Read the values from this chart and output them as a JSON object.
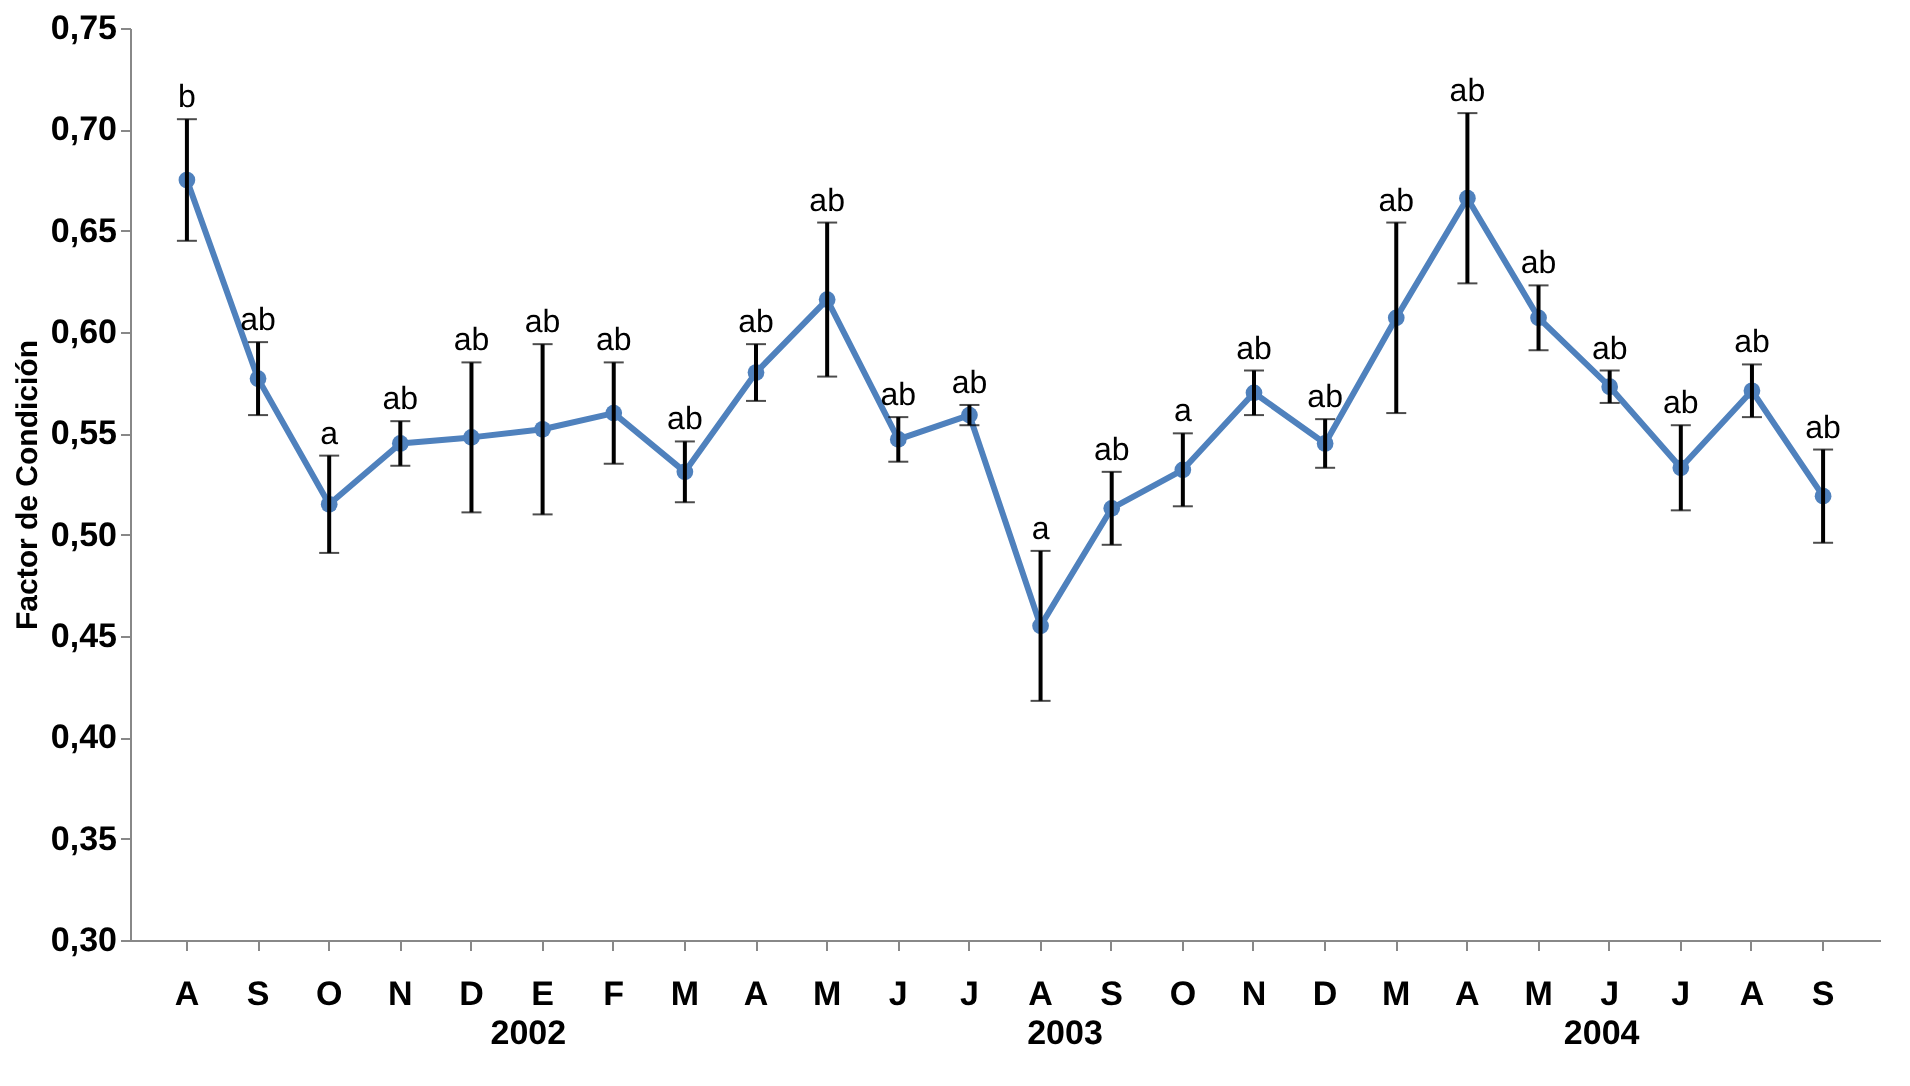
{
  "chart_data": {
    "type": "line",
    "ylabel": "Factor de Condición",
    "categories": [
      "A",
      "S",
      "O",
      "N",
      "D",
      "E",
      "F",
      "M",
      "A",
      "M",
      "J",
      "J",
      "A",
      "S",
      "O",
      "N",
      "D",
      "M",
      "A",
      "M",
      "J",
      "J",
      "A",
      "S"
    ],
    "series": [
      {
        "color": "#4f81bd",
        "values": [
          0.675,
          0.577,
          0.515,
          0.545,
          0.548,
          0.552,
          0.56,
          0.531,
          0.58,
          0.616,
          0.547,
          0.559,
          0.455,
          0.513,
          0.532,
          0.57,
          0.545,
          0.607,
          0.666,
          0.607,
          0.573,
          0.533,
          0.571,
          0.519
        ],
        "errors": [
          0.03,
          0.018,
          0.024,
          0.011,
          0.037,
          0.042,
          0.025,
          0.015,
          0.014,
          0.038,
          0.011,
          0.005,
          0.037,
          0.018,
          0.018,
          0.011,
          0.012,
          0.047,
          0.042,
          0.016,
          0.008,
          0.021,
          0.013,
          0.023
        ],
        "value_labels": [
          "b",
          "ab",
          "a",
          "ab",
          "ab",
          "ab",
          "ab",
          "ab",
          "ab",
          "ab",
          "ab",
          "ab",
          "a",
          "ab",
          "a",
          "ab",
          "ab",
          "ab",
          "ab",
          "ab",
          "ab",
          "ab",
          "ab",
          "ab"
        ]
      }
    ],
    "ylim": [
      0.3,
      0.75
    ],
    "yticks": [
      {
        "value": 0.3,
        "label": "0,30"
      },
      {
        "value": 0.35,
        "label": "0,35"
      },
      {
        "value": 0.4,
        "label": "0,40"
      },
      {
        "value": 0.45,
        "label": "0,45"
      },
      {
        "value": 0.5,
        "label": "0,50"
      },
      {
        "value": 0.55,
        "label": "0,55"
      },
      {
        "value": 0.6,
        "label": "0,60"
      },
      {
        "value": 0.65,
        "label": "0,65"
      },
      {
        "value": 0.7,
        "label": "0,70"
      },
      {
        "value": 0.75,
        "label": "0,75"
      }
    ],
    "annotations": [
      "2002",
      "2003",
      "2004"
    ],
    "marker": "circle"
  }
}
